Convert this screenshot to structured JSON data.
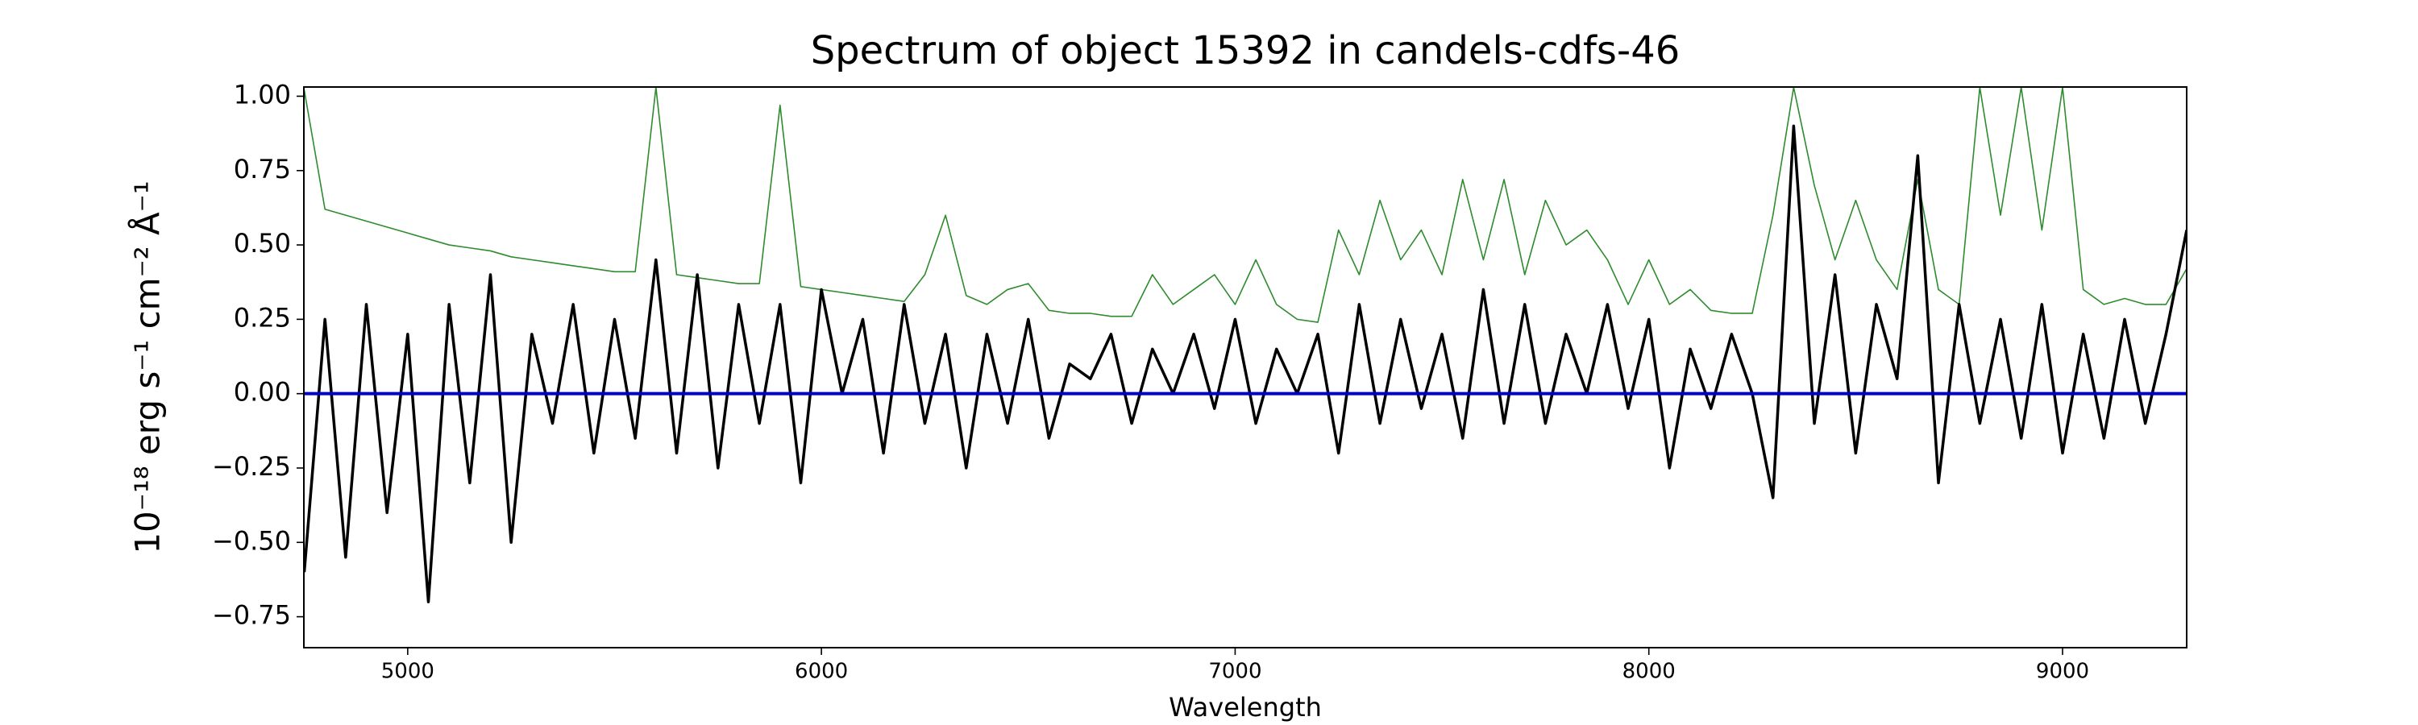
{
  "chart_data": {
    "type": "line",
    "title": "Spectrum of object 15392 in candels-cdfs-46",
    "xlabel": "Wavelength",
    "ylabel": "10⁻¹⁸ erg s⁻¹ cm⁻² Å⁻¹",
    "xlim": [
      4749,
      9300
    ],
    "ylim": [
      -0.854,
      1.031
    ],
    "xticks": [
      5000,
      6000,
      7000,
      8000,
      9000
    ],
    "yticks": [
      {
        "value": -0.75,
        "label": "−0.75"
      },
      {
        "value": -0.5,
        "label": "−0.50"
      },
      {
        "value": -0.25,
        "label": "−0.25"
      },
      {
        "value": 0,
        "label": "0.00"
      },
      {
        "value": 0.25,
        "label": "0.25"
      },
      {
        "value": 0.5,
        "label": "0.50"
      },
      {
        "value": 0.75,
        "label": "0.75"
      },
      {
        "value": 1,
        "label": "1.00"
      }
    ],
    "x": [
      4750,
      4800,
      4850,
      4900,
      4950,
      5000,
      5050,
      5100,
      5150,
      5200,
      5250,
      5300,
      5350,
      5400,
      5450,
      5500,
      5550,
      5600,
      5650,
      5700,
      5750,
      5800,
      5850,
      5900,
      5950,
      6000,
      6050,
      6100,
      6150,
      6200,
      6250,
      6300,
      6350,
      6400,
      6450,
      6500,
      6550,
      6600,
      6650,
      6700,
      6750,
      6800,
      6850,
      6900,
      6950,
      7000,
      7050,
      7100,
      7150,
      7200,
      7250,
      7300,
      7350,
      7400,
      7450,
      7500,
      7550,
      7600,
      7650,
      7700,
      7750,
      7800,
      7850,
      7900,
      7950,
      8000,
      8050,
      8100,
      8150,
      8200,
      8250,
      8300,
      8350,
      8400,
      8450,
      8500,
      8550,
      8600,
      8650,
      8700,
      8750,
      8800,
      8850,
      8900,
      8950,
      9000,
      9050,
      9100,
      9150,
      9200,
      9250,
      9300
    ],
    "series": [
      {
        "color": "#2e8b2e",
        "width": 1.6,
        "values": [
          1.02,
          0.62,
          0.6,
          0.58,
          0.56,
          0.54,
          0.52,
          0.5,
          0.49,
          0.48,
          0.46,
          0.45,
          0.44,
          0.43,
          0.42,
          0.41,
          0.41,
          1.03,
          0.4,
          0.39,
          0.38,
          0.37,
          0.37,
          0.97,
          0.36,
          0.35,
          0.34,
          0.33,
          0.32,
          0.31,
          0.4,
          0.6,
          0.33,
          0.3,
          0.35,
          0.37,
          0.28,
          0.27,
          0.27,
          0.26,
          0.26,
          0.4,
          0.3,
          0.35,
          0.4,
          0.3,
          0.45,
          0.3,
          0.25,
          0.24,
          0.55,
          0.4,
          0.65,
          0.45,
          0.55,
          0.4,
          0.72,
          0.45,
          0.72,
          0.4,
          0.65,
          0.5,
          0.55,
          0.45,
          0.3,
          0.45,
          0.3,
          0.35,
          0.28,
          0.27,
          0.27,
          0.6,
          1.03,
          0.7,
          0.45,
          0.65,
          0.45,
          0.35,
          0.72,
          0.35,
          0.3,
          1.03,
          0.6,
          1.03,
          0.55,
          1.03,
          0.35,
          0.3,
          0.32,
          0.3,
          0.3,
          0.42
        ]
      },
      {
        "color": "#000000",
        "width": 3.5,
        "values": [
          -0.6,
          0.25,
          -0.55,
          0.3,
          -0.4,
          0.2,
          -0.7,
          0.3,
          -0.3,
          0.4,
          -0.5,
          0.2,
          -0.1,
          0.3,
          -0.2,
          0.25,
          -0.15,
          0.45,
          -0.2,
          0.4,
          -0.25,
          0.3,
          -0.1,
          0.3,
          -0.3,
          0.35,
          0.0,
          0.25,
          -0.2,
          0.3,
          -0.1,
          0.2,
          -0.25,
          0.2,
          -0.1,
          0.25,
          -0.15,
          0.1,
          0.05,
          0.2,
          -0.1,
          0.15,
          0.0,
          0.2,
          -0.05,
          0.25,
          -0.1,
          0.15,
          0.0,
          0.2,
          -0.2,
          0.3,
          -0.1,
          0.25,
          -0.05,
          0.2,
          -0.15,
          0.35,
          -0.1,
          0.3,
          -0.1,
          0.2,
          0.0,
          0.3,
          -0.05,
          0.25,
          -0.25,
          0.15,
          -0.05,
          0.2,
          0.0,
          -0.35,
          0.9,
          -0.1,
          0.4,
          -0.2,
          0.3,
          0.05,
          0.8,
          -0.3,
          0.3,
          -0.1,
          0.25,
          -0.15,
          0.3,
          -0.2,
          0.2,
          -0.15,
          0.25,
          -0.1,
          0.2,
          0.55
        ]
      }
    ],
    "hlines": [
      {
        "y": 0,
        "color": "#0000cc"
      }
    ]
  }
}
